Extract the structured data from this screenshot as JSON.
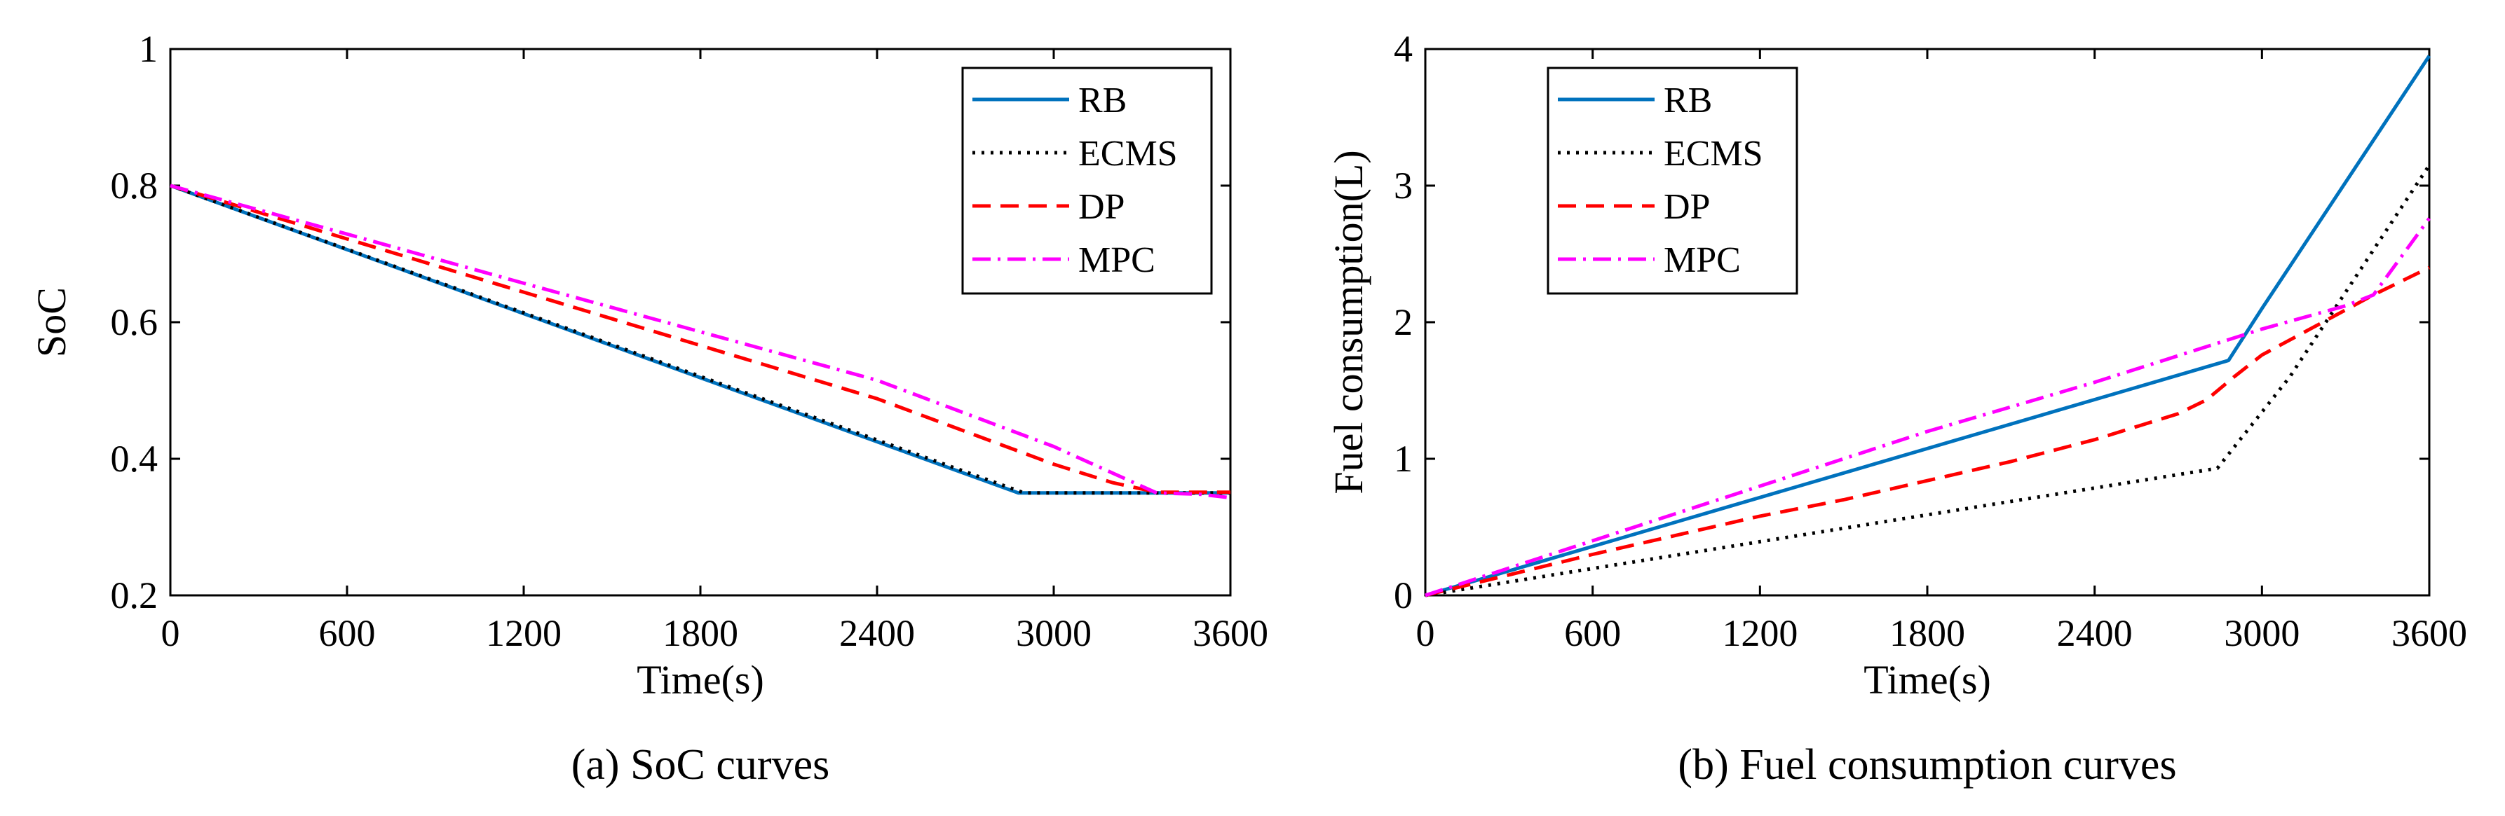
{
  "chart_data": [
    {
      "type": "line",
      "caption": "(a) SoC curves",
      "xlabel": "Time(s)",
      "ylabel": "SoC",
      "xlim": [
        0,
        3600
      ],
      "ylim": [
        0.2,
        1
      ],
      "xticks": [
        0,
        600,
        1200,
        1800,
        2400,
        3000,
        3600
      ],
      "yticks": [
        0.2,
        0.4,
        0.6,
        0.8,
        1
      ],
      "ytick_labels": [
        "0.2",
        "0.4",
        "0.6",
        "0.8",
        "1"
      ],
      "grid": false,
      "legend_position": "top-right",
      "series": [
        {
          "name": "RB",
          "color": "#0072BD",
          "dash": "solid",
          "points": [
            [
              0,
              0.8
            ],
            [
              2880,
              0.35
            ],
            [
              3600,
              0.35
            ]
          ]
        },
        {
          "name": "ECMS",
          "color": "#000000",
          "dash": "dotted",
          "points": [
            [
              0,
              0.8
            ],
            [
              2900,
              0.35
            ],
            [
              3600,
              0.35
            ]
          ]
        },
        {
          "name": "DP",
          "color": "#FF0000",
          "dash": "dashed",
          "points": [
            [
              0,
              0.8
            ],
            [
              600,
              0.722
            ],
            [
              1200,
              0.644
            ],
            [
              1800,
              0.566
            ],
            [
              2400,
              0.488
            ],
            [
              3000,
              0.392
            ],
            [
              3200,
              0.365
            ],
            [
              3350,
              0.351
            ],
            [
              3600,
              0.351
            ]
          ]
        },
        {
          "name": "MPC",
          "color": "#FF00FF",
          "dash": "dashdot",
          "points": [
            [
              0,
              0.8
            ],
            [
              600,
              0.729
            ],
            [
              1200,
              0.657
            ],
            [
              1800,
              0.586
            ],
            [
              2400,
              0.515
            ],
            [
              3000,
              0.418
            ],
            [
              3350,
              0.35
            ],
            [
              3500,
              0.348
            ],
            [
              3600,
              0.343
            ]
          ]
        }
      ]
    },
    {
      "type": "line",
      "caption": "(b) Fuel consumption curves",
      "xlabel": "Time(s)",
      "ylabel": "Fuel consumption(L)",
      "xlim": [
        0,
        3600
      ],
      "ylim": [
        0,
        4
      ],
      "xticks": [
        0,
        600,
        1200,
        1800,
        2400,
        3000,
        3600
      ],
      "yticks": [
        0,
        1,
        2,
        3,
        4
      ],
      "ytick_labels": [
        "0",
        "1",
        "2",
        "3",
        "4"
      ],
      "grid": false,
      "legend_position": "top-left",
      "series": [
        {
          "name": "RB",
          "color": "#0072BD",
          "dash": "solid",
          "points": [
            [
              0,
              0
            ],
            [
              2880,
              1.72
            ],
            [
              3000,
              2.1
            ],
            [
              3600,
              3.95
            ]
          ]
        },
        {
          "name": "ECMS",
          "color": "#000000",
          "dash": "dotted",
          "points": [
            [
              0,
              0
            ],
            [
              2840,
              0.93
            ],
            [
              3100,
              1.6
            ],
            [
              3600,
              3.15
            ]
          ]
        },
        {
          "name": "DP",
          "color": "#FF0000",
          "dash": "dashed",
          "points": [
            [
              0,
              0
            ],
            [
              400,
              0.2
            ],
            [
              600,
              0.3
            ],
            [
              900,
              0.44
            ],
            [
              1200,
              0.58
            ],
            [
              1500,
              0.7
            ],
            [
              1800,
              0.84
            ],
            [
              2100,
              0.98
            ],
            [
              2400,
              1.14
            ],
            [
              2700,
              1.33
            ],
            [
              2800,
              1.43
            ],
            [
              2900,
              1.6
            ],
            [
              3000,
              1.76
            ],
            [
              3200,
              1.98
            ],
            [
              3400,
              2.2
            ],
            [
              3500,
              2.3
            ],
            [
              3600,
              2.4
            ]
          ]
        },
        {
          "name": "MPC",
          "color": "#FF00FF",
          "dash": "dashdot",
          "points": [
            [
              0,
              0
            ],
            [
              600,
              0.4
            ],
            [
              1200,
              0.8
            ],
            [
              1800,
              1.2
            ],
            [
              2400,
              1.56
            ],
            [
              3000,
              1.95
            ],
            [
              3300,
              2.12
            ],
            [
              3400,
              2.2
            ],
            [
              3600,
              2.76
            ]
          ]
        }
      ]
    }
  ]
}
